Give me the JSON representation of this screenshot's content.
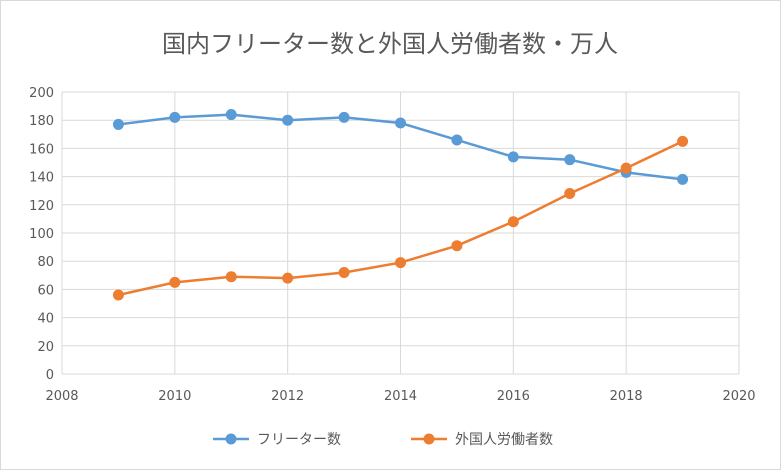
{
  "chart_data": {
    "type": "scatter",
    "title": "国内フリーター数と外国人労働者数・万人",
    "xlabel": "",
    "ylabel": "",
    "xlim": [
      2008,
      2020
    ],
    "ylim": [
      0,
      200
    ],
    "xticks": [
      2008,
      2010,
      2012,
      2014,
      2016,
      2018,
      2020
    ],
    "yticks": [
      0,
      20,
      40,
      60,
      80,
      100,
      120,
      140,
      160,
      180,
      200
    ],
    "grid": true,
    "legend_position": "bottom",
    "series": [
      {
        "name": "フリーター数",
        "color": "#5b9bd5",
        "x": [
          2009,
          2010,
          2011,
          2012,
          2013,
          2014,
          2015,
          2016,
          2017,
          2018,
          2019
        ],
        "y": [
          177,
          182,
          184,
          180,
          182,
          178,
          166,
          154,
          152,
          143,
          138
        ]
      },
      {
        "name": "外国人労働者数",
        "color": "#ed7d31",
        "x": [
          2009,
          2010,
          2011,
          2012,
          2013,
          2014,
          2015,
          2016,
          2017,
          2018,
          2019
        ],
        "y": [
          56,
          65,
          69,
          68,
          72,
          79,
          91,
          108,
          128,
          146,
          165
        ]
      }
    ]
  }
}
